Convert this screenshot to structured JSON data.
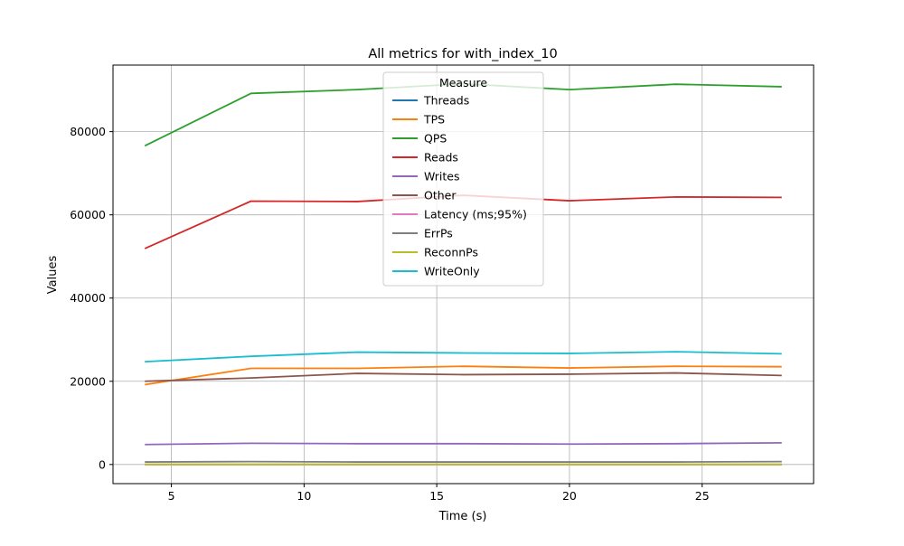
{
  "chart_data": {
    "type": "line",
    "title": "All metrics for with_index_10",
    "xlabel": "Time (s)",
    "ylabel": "Values",
    "xlim": [
      2.8,
      29.2
    ],
    "ylim": [
      -4600,
      96000
    ],
    "xticks": [
      5,
      10,
      15,
      20,
      25
    ],
    "yticks": [
      0,
      20000,
      40000,
      60000,
      80000
    ],
    "grid": true,
    "legend": {
      "title": "Measure",
      "placement": "upper-center"
    },
    "x": [
      4,
      8,
      12,
      16,
      20,
      24,
      28
    ],
    "series": [
      {
        "name": "Threads",
        "color": "#1f77b4",
        "values": [
          10,
          10,
          10,
          10,
          10,
          10,
          10
        ]
      },
      {
        "name": "TPS",
        "color": "#ff7f0e",
        "values": [
          19200,
          23100,
          23100,
          23600,
          23200,
          23600,
          23500
        ]
      },
      {
        "name": "QPS",
        "color": "#2ca02c",
        "values": [
          76600,
          89200,
          90100,
          91500,
          90100,
          91400,
          90800
        ]
      },
      {
        "name": "Reads",
        "color": "#d62728",
        "values": [
          51900,
          63300,
          63200,
          64700,
          63400,
          64300,
          64200
        ]
      },
      {
        "name": "Writes",
        "color": "#9467bd",
        "values": [
          4800,
          5100,
          5000,
          5000,
          4900,
          5000,
          5200
        ]
      },
      {
        "name": "Other",
        "color": "#8c564b",
        "values": [
          20000,
          20800,
          21900,
          21600,
          21700,
          22000,
          21400
        ]
      },
      {
        "name": "Latency (ms;95%)",
        "color": "#e377c2",
        "values": [
          1,
          1,
          1,
          1,
          1,
          1,
          1
        ]
      },
      {
        "name": "ErrPs",
        "color": "#7f7f7f",
        "values": [
          600,
          700,
          600,
          600,
          600,
          600,
          700
        ]
      },
      {
        "name": "ReconnPs",
        "color": "#bcbd22",
        "values": [
          0,
          0,
          0,
          0,
          0,
          0,
          0
        ]
      },
      {
        "name": "WriteOnly",
        "color": "#17becf",
        "values": [
          24700,
          26000,
          27000,
          26800,
          26700,
          27100,
          26600
        ]
      }
    ]
  }
}
